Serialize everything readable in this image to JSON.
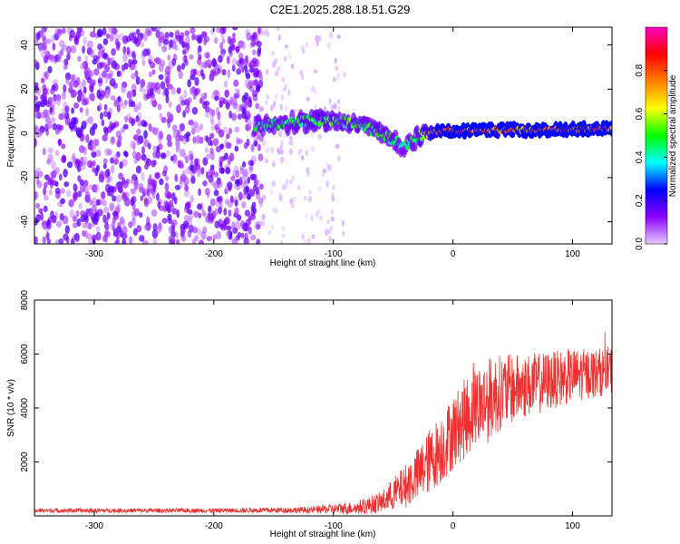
{
  "title": "C2E1.2025.288.18.51.G29",
  "chart_data": [
    {
      "type": "heatmap",
      "xlabel": "Height of straight line (km)",
      "ylabel": "Frequency (Hz)",
      "xlim": [
        -350,
        133
      ],
      "ylim": [
        -50,
        48
      ],
      "xticks": [
        -300,
        -200,
        -100,
        0,
        100
      ],
      "yticks": [
        -40,
        -20,
        0,
        20,
        40
      ],
      "colorbar": {
        "label": "Normalized spectral amplitude",
        "range": [
          0,
          1
        ],
        "ticks": [
          0.0,
          0.2,
          0.4,
          0.6,
          0.8
        ],
        "tick_labels": [
          "0.0",
          "0.2",
          "0.4",
          "0.6",
          "0.8"
        ],
        "colors": [
          "#e6ccff",
          "#8a00ff",
          "#0000ff",
          "#00ffff",
          "#00ff00",
          "#ffff00",
          "#ff8000",
          "#ff0000",
          "#ff00c0"
        ]
      },
      "noise_region": {
        "x_range": [
          -350,
          -160
        ],
        "amplitude": 0.15
      },
      "sparse_noise_region": {
        "x_range": [
          -160,
          -90
        ],
        "amplitude": 0.05
      },
      "signal_track": {
        "x": [
          -165,
          -150,
          -130,
          -110,
          -90,
          -80,
          -70,
          -60,
          -50,
          -42,
          -35,
          -25,
          -15,
          0,
          20,
          40,
          60,
          80,
          100,
          120,
          133
        ],
        "freq": [
          3,
          4,
          5,
          6,
          5,
          4,
          2,
          0,
          -3,
          -6,
          -4,
          0,
          1,
          1,
          1.5,
          1.5,
          1.5,
          1.5,
          2,
          2,
          2
        ],
        "amplitude": [
          0.45,
          0.5,
          0.5,
          0.55,
          0.5,
          0.55,
          0.5,
          0.55,
          0.5,
          0.45,
          0.45,
          0.6,
          0.75,
          0.85,
          0.85,
          0.8,
          0.8,
          0.85,
          0.85,
          0.85,
          0.85
        ]
      }
    },
    {
      "type": "line",
      "xlabel": "Height of straight line (km)",
      "ylabel": "SNR (10 * v/v)",
      "xlim": [
        -350,
        133
      ],
      "ylim": [
        0,
        8000
      ],
      "xticks": [
        -300,
        -200,
        -100,
        0,
        100
      ],
      "yticks": [
        2000,
        4000,
        6000,
        8000
      ],
      "series": [
        {
          "name": "SNR",
          "color": "#f03030",
          "envelope_x": [
            -350,
            -200,
            -120,
            -80,
            -60,
            -50,
            -40,
            -30,
            -20,
            -10,
            0,
            10,
            20,
            30,
            40,
            50,
            60,
            80,
            100,
            120,
            133
          ],
          "envelope_mean": [
            200,
            200,
            220,
            300,
            500,
            800,
            1100,
            1500,
            2000,
            2500,
            3100,
            3600,
            4100,
            4300,
            4600,
            4700,
            4800,
            5000,
            5200,
            5300,
            5400
          ],
          "envelope_amplitude": [
            80,
            80,
            120,
            250,
            400,
            600,
            800,
            1000,
            1200,
            1300,
            1400,
            1500,
            1500,
            1600,
            1400,
            1300,
            1200,
            1100,
            1000,
            900,
            900
          ]
        }
      ]
    }
  ]
}
